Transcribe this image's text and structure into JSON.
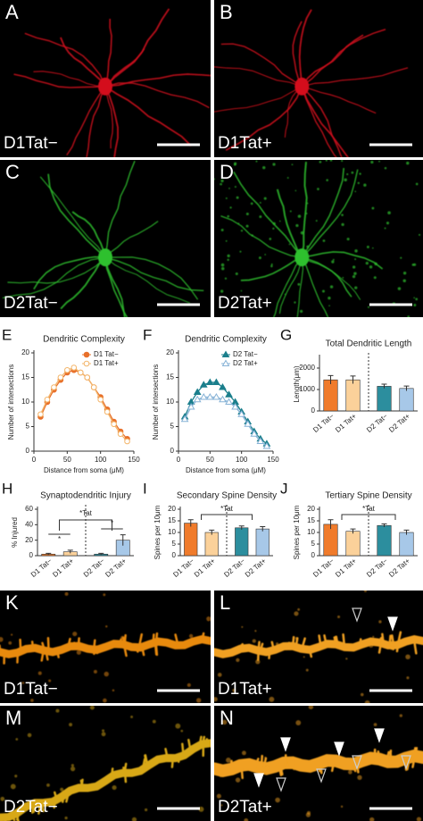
{
  "images": [
    {
      "letter": "A",
      "label": "D1Tat−"
    },
    {
      "letter": "B",
      "label": "D1Tat+"
    },
    {
      "letter": "C",
      "label": "D2Tat−"
    },
    {
      "letter": "D",
      "label": "D2Tat+"
    },
    {
      "letter": "K",
      "label": "D1Tat−"
    },
    {
      "letter": "L",
      "label": "D1Tat+"
    },
    {
      "letter": "M",
      "label": "D2Tat−"
    },
    {
      "letter": "N",
      "label": "D2Tat+"
    }
  ],
  "chart_data": [
    {
      "type": "line",
      "panel": "E",
      "title": "Dendritic Complexity",
      "xlabel": "Distance from soma (μM)",
      "ylabel": "Number of intersections",
      "x": [
        10,
        20,
        30,
        40,
        50,
        60,
        70,
        80,
        90,
        100,
        110,
        120,
        130,
        140
      ],
      "xlim": [
        0,
        150
      ],
      "xticks": [
        0,
        50,
        100,
        150
      ],
      "ylim": [
        0,
        20
      ],
      "yticks": [
        0,
        5,
        10,
        15,
        20
      ],
      "series": [
        {
          "name": "D1 Tat−",
          "color": "#e8702a",
          "marker": "circle",
          "filled": true,
          "values": [
            7,
            10,
            12.5,
            14.5,
            16,
            16.5,
            16,
            15,
            13,
            11,
            8.5,
            6,
            4,
            2.5
          ]
        },
        {
          "name": "D1 Tat+",
          "color": "#f3b56a",
          "marker": "circle",
          "filled": false,
          "values": [
            7.5,
            10.5,
            13,
            15,
            16.5,
            17,
            16,
            15,
            13,
            10.5,
            8,
            5.5,
            3.5,
            2
          ]
        }
      ]
    },
    {
      "type": "line",
      "panel": "F",
      "title": "Dendritic Complexity",
      "xlabel": "Distance from soma (μM)",
      "ylabel": "Number of intersections",
      "x": [
        10,
        20,
        30,
        40,
        50,
        60,
        70,
        80,
        90,
        100,
        110,
        120,
        130,
        140
      ],
      "xlim": [
        0,
        150
      ],
      "xticks": [
        0,
        50,
        100,
        150
      ],
      "ylim": [
        0,
        20
      ],
      "yticks": [
        0,
        5,
        10,
        15,
        20
      ],
      "series": [
        {
          "name": "D2 Tat−",
          "color": "#1b7f8c",
          "marker": "triangle",
          "filled": true,
          "values": [
            7,
            10,
            12,
            13.5,
            14,
            14,
            13,
            11.5,
            10,
            8,
            6,
            4,
            2.5,
            1.5
          ]
        },
        {
          "name": "D2 Tat+",
          "color": "#86b2d6",
          "marker": "triangle",
          "filled": false,
          "values": [
            6.5,
            9,
            10.5,
            11,
            11,
            11,
            10.5,
            10,
            9,
            7.5,
            5.5,
            3.5,
            2,
            1
          ]
        }
      ]
    },
    {
      "type": "bar",
      "panel": "G",
      "title": "Total Dendritic Length",
      "ylabel": "Length(μm)",
      "categories": [
        "D1 Tat−",
        "D1 Tat+",
        "D2 Tat−",
        "D2 Tat+"
      ],
      "colors": [
        "#f07b2b",
        "#fbd19a",
        "#2c8e9e",
        "#a7c8e8"
      ],
      "values": [
        1450,
        1450,
        1150,
        1050
      ],
      "errors": [
        200,
        180,
        100,
        110
      ],
      "ylim": [
        0,
        2500
      ],
      "yticks": [
        0,
        1000,
        2000
      ],
      "annotations": []
    },
    {
      "type": "bar",
      "panel": "H",
      "title": "Synaptodendritic Injury",
      "ylabel": "% Injured",
      "categories": [
        "D1 Tat−",
        "D1 Tat+",
        "D2 Tat−",
        "D2 Tat+"
      ],
      "colors": [
        "#f07b2b",
        "#fbd19a",
        "#2c8e9e",
        "#a7c8e8"
      ],
      "values": [
        2,
        5,
        2,
        20
      ],
      "errors": [
        1,
        2,
        1,
        7
      ],
      "ylim": [
        0,
        60
      ],
      "yticks": [
        0,
        20,
        40,
        60
      ],
      "annotations": [
        "*",
        "*Tat",
        "*"
      ]
    },
    {
      "type": "bar",
      "panel": "I",
      "title": "Secondary Spine Density",
      "ylabel": "Spines per 10μm",
      "categories": [
        "D1 Tat−",
        "D1 Tat+",
        "D2 Tat−",
        "D2 Tat+"
      ],
      "colors": [
        "#f07b2b",
        "#fbd19a",
        "#2c8e9e",
        "#a7c8e8"
      ],
      "values": [
        14,
        10,
        12,
        11.5
      ],
      "errors": [
        1.5,
        1,
        0.8,
        1
      ],
      "ylim": [
        0,
        20
      ],
      "yticks": [
        0,
        5,
        10,
        15,
        20
      ],
      "annotations": [
        "*Tat"
      ]
    },
    {
      "type": "bar",
      "panel": "J",
      "title": "Tertiary Spine Density",
      "ylabel": "Spines per 10μm",
      "categories": [
        "D1 Tat−",
        "D1 Tat+",
        "D2 Tat−",
        "D2 Tat+"
      ],
      "colors": [
        "#f07b2b",
        "#fbd19a",
        "#2c8e9e",
        "#a7c8e8"
      ],
      "values": [
        13.5,
        10.5,
        13,
        10
      ],
      "errors": [
        2,
        1,
        0.7,
        1
      ],
      "ylim": [
        0,
        20
      ],
      "yticks": [
        0,
        5,
        10,
        15,
        20
      ],
      "annotations": [
        "*Tat"
      ]
    }
  ]
}
